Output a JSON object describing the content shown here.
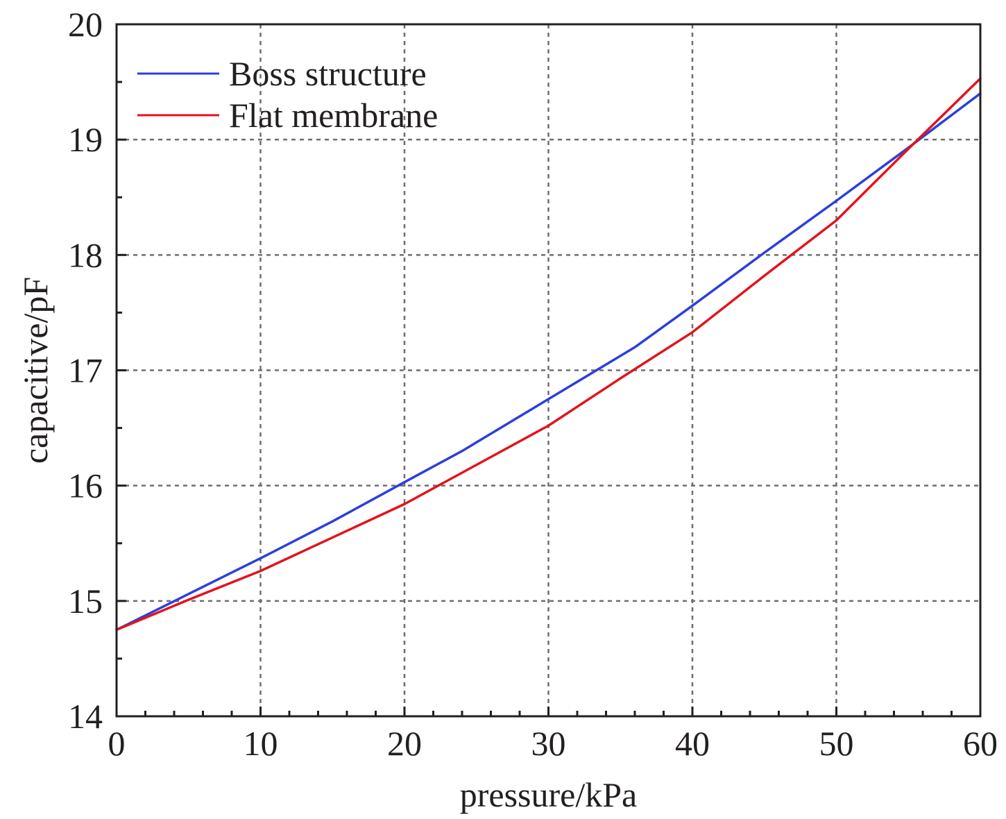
{
  "chart_data": {
    "type": "line",
    "title": "",
    "xlabel": "pressure/kPa",
    "ylabel": "capacitive/pF",
    "xlim": [
      0,
      60
    ],
    "ylim": [
      14,
      20
    ],
    "x_ticks": [
      0,
      10,
      20,
      30,
      40,
      50,
      60
    ],
    "x_tick_labels": [
      "0",
      "10",
      "20",
      "30",
      "40",
      "50",
      "60"
    ],
    "y_ticks": [
      14,
      15,
      16,
      17,
      18,
      19,
      20
    ],
    "y_tick_labels": [
      "14",
      "15",
      "16",
      "17",
      "18",
      "19",
      "20"
    ],
    "grid": true,
    "legend_position": "top-left",
    "series": [
      {
        "name": "Boss structure",
        "color": "#2b3fdc",
        "x": [
          0,
          5,
          10,
          15,
          20,
          24,
          30,
          36,
          40,
          45,
          50,
          55,
          60
        ],
        "y": [
          14.75,
          15.06,
          15.37,
          15.69,
          16.03,
          16.3,
          16.75,
          17.2,
          17.56,
          18.02,
          18.47,
          18.93,
          19.4
        ]
      },
      {
        "name": "Flat membrane",
        "color": "#e3131b",
        "x": [
          0,
          5,
          10,
          15,
          20,
          25,
          30,
          35,
          40,
          45,
          50,
          55,
          60
        ],
        "y": [
          14.75,
          15.01,
          15.26,
          15.55,
          15.84,
          16.18,
          16.52,
          16.93,
          17.33,
          17.82,
          18.3,
          18.92,
          19.53
        ]
      }
    ]
  }
}
